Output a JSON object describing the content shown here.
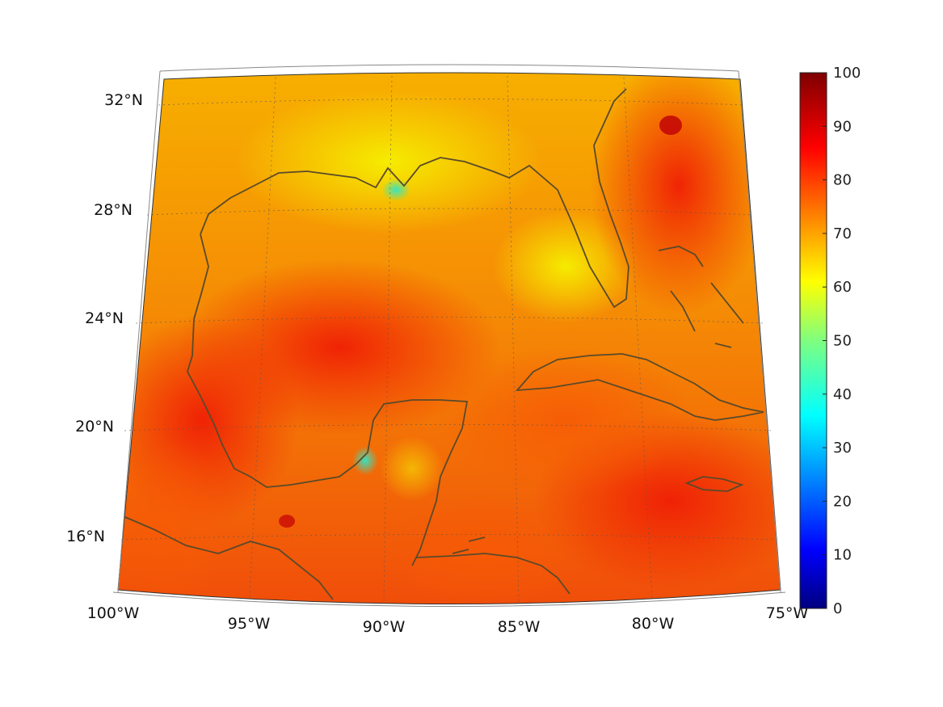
{
  "map": {
    "projection": "conic",
    "extent": {
      "lon": [
        -100,
        -75
      ],
      "lat": [
        14,
        33
      ]
    },
    "lat_labels": [
      {
        "value": 32,
        "label": "32°N"
      },
      {
        "value": 28,
        "label": "28°N"
      },
      {
        "value": 24,
        "label": "24°N"
      },
      {
        "value": 20,
        "label": "20°N"
      },
      {
        "value": 16,
        "label": "16°N"
      }
    ],
    "lon_labels": [
      {
        "value": -100,
        "label": "100°W"
      },
      {
        "value": -95,
        "label": "95°W"
      },
      {
        "value": -90,
        "label": "90°W"
      },
      {
        "value": -85,
        "label": "85°W"
      },
      {
        "value": -80,
        "label": "80°W"
      },
      {
        "value": -75,
        "label": "75°W"
      }
    ],
    "gridlines": true,
    "coastline_color": "#5a4a2a"
  },
  "colorbar": {
    "colormap": "jet",
    "min": 0,
    "max": 100,
    "ticks": [
      "0",
      "10",
      "20",
      "30",
      "40",
      "50",
      "60",
      "70",
      "80",
      "90",
      "100"
    ]
  }
}
